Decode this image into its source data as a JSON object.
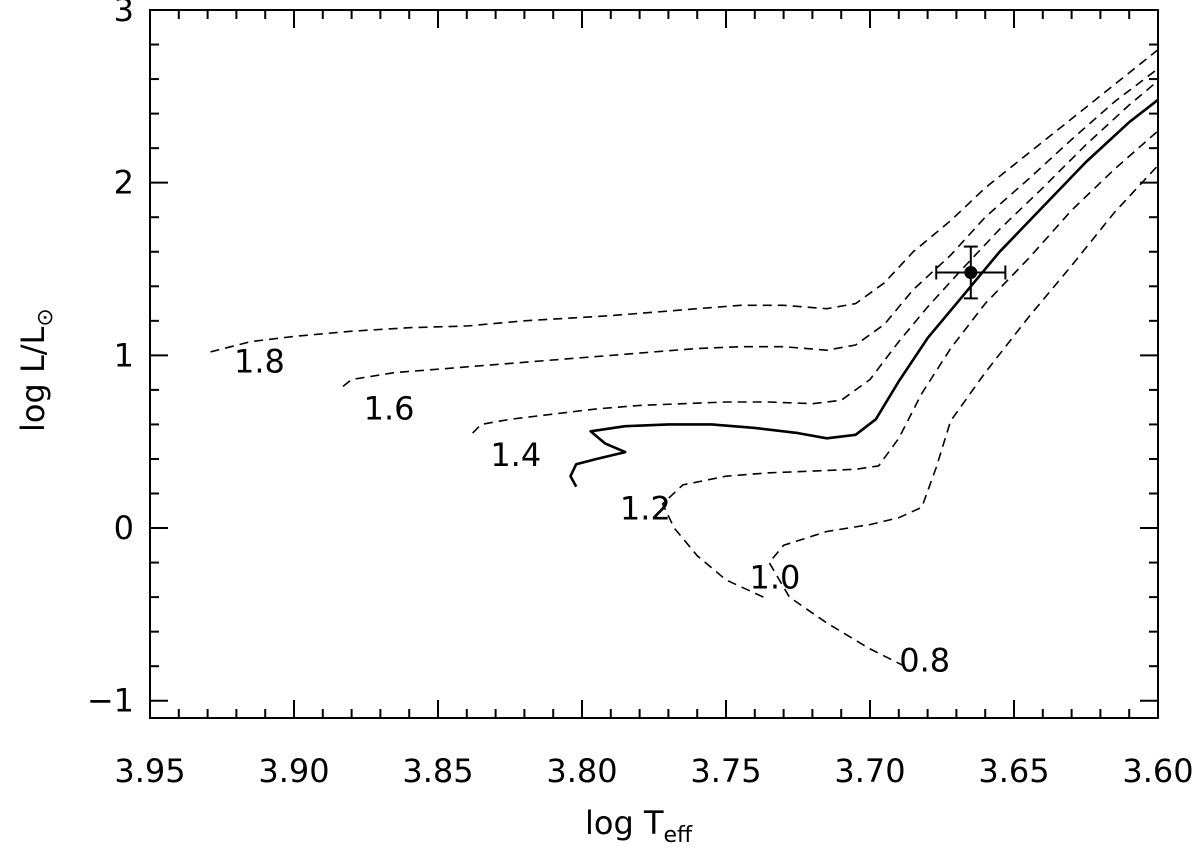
{
  "chart_data": {
    "type": "line",
    "title": "",
    "xlabel": {
      "main": "log T",
      "sub": "eff"
    },
    "ylabel": {
      "main": "log L/L",
      "sub": "⊙"
    },
    "xlim": [
      3.95,
      3.6
    ],
    "ylim": [
      -1.1,
      3.0
    ],
    "x_ticks": [
      "3.95",
      "3.90",
      "3.85",
      "3.80",
      "3.75",
      "3.70",
      "3.65",
      "3.60"
    ],
    "y_ticks": [
      "−1",
      "0",
      "1",
      "2",
      "3"
    ],
    "grid": false,
    "legend": "none",
    "series": [
      {
        "label": "1.8",
        "style": "dashed",
        "label_at": [
          3.912,
          0.9
        ],
        "points": [
          [
            3.929,
            1.02
          ],
          [
            3.915,
            1.08
          ],
          [
            3.9,
            1.11
          ],
          [
            3.88,
            1.14
          ],
          [
            3.86,
            1.16
          ],
          [
            3.84,
            1.17
          ],
          [
            3.82,
            1.2
          ],
          [
            3.81,
            1.21
          ],
          [
            3.8,
            1.22
          ],
          [
            3.79,
            1.23
          ],
          [
            3.775,
            1.25
          ],
          [
            3.76,
            1.27
          ],
          [
            3.745,
            1.29
          ],
          [
            3.73,
            1.29
          ],
          [
            3.715,
            1.27
          ],
          [
            3.705,
            1.3
          ],
          [
            3.695,
            1.42
          ],
          [
            3.685,
            1.6
          ],
          [
            3.672,
            1.78
          ],
          [
            3.66,
            1.97
          ],
          [
            3.645,
            2.17
          ],
          [
            3.63,
            2.37
          ],
          [
            3.615,
            2.57
          ],
          [
            3.6,
            2.77
          ]
        ]
      },
      {
        "label": "1.6",
        "style": "dashed",
        "label_at": [
          3.867,
          0.63
        ],
        "points": [
          [
            3.883,
            0.82
          ],
          [
            3.88,
            0.86
          ],
          [
            3.865,
            0.9
          ],
          [
            3.85,
            0.92
          ],
          [
            3.835,
            0.94
          ],
          [
            3.82,
            0.96
          ],
          [
            3.805,
            0.98
          ],
          [
            3.79,
            1.0
          ],
          [
            3.775,
            1.02
          ],
          [
            3.76,
            1.04
          ],
          [
            3.745,
            1.05
          ],
          [
            3.73,
            1.05
          ],
          [
            3.715,
            1.03
          ],
          [
            3.705,
            1.06
          ],
          [
            3.695,
            1.18
          ],
          [
            3.685,
            1.38
          ],
          [
            3.672,
            1.58
          ],
          [
            3.66,
            1.8
          ],
          [
            3.645,
            2.02
          ],
          [
            3.63,
            2.25
          ],
          [
            3.615,
            2.47
          ],
          [
            3.6,
            2.66
          ]
        ]
      },
      {
        "label": "1.4",
        "style": "dashed",
        "label_at": [
          3.823,
          0.36
        ],
        "points": [
          [
            3.838,
            0.55
          ],
          [
            3.835,
            0.6
          ],
          [
            3.825,
            0.63
          ],
          [
            3.81,
            0.66
          ],
          [
            3.795,
            0.69
          ],
          [
            3.78,
            0.71
          ],
          [
            3.765,
            0.72
          ],
          [
            3.75,
            0.73
          ],
          [
            3.735,
            0.73
          ],
          [
            3.72,
            0.72
          ],
          [
            3.71,
            0.74
          ],
          [
            3.7,
            0.86
          ],
          [
            3.69,
            1.08
          ],
          [
            3.68,
            1.28
          ],
          [
            3.668,
            1.5
          ],
          [
            3.655,
            1.73
          ],
          [
            3.64,
            1.97
          ],
          [
            3.625,
            2.22
          ],
          [
            3.61,
            2.45
          ],
          [
            3.6,
            2.59
          ]
        ]
      },
      {
        "label": "1.2",
        "style": "solid",
        "label_at": [
          3.778,
          0.05
        ],
        "points": [
          [
            3.802,
            0.24
          ],
          [
            3.804,
            0.3
          ],
          [
            3.802,
            0.37
          ],
          [
            3.795,
            0.4
          ],
          [
            3.785,
            0.44
          ],
          [
            3.792,
            0.49
          ],
          [
            3.797,
            0.56
          ],
          [
            3.785,
            0.59
          ],
          [
            3.77,
            0.6
          ],
          [
            3.755,
            0.6
          ],
          [
            3.74,
            0.58
          ],
          [
            3.725,
            0.55
          ],
          [
            3.715,
            0.52
          ],
          [
            3.705,
            0.54
          ],
          [
            3.698,
            0.63
          ],
          [
            3.69,
            0.85
          ],
          [
            3.68,
            1.1
          ],
          [
            3.668,
            1.34
          ],
          [
            3.655,
            1.6
          ],
          [
            3.64,
            1.86
          ],
          [
            3.625,
            2.12
          ],
          [
            3.61,
            2.35
          ],
          [
            3.6,
            2.48
          ]
        ]
      },
      {
        "label": "1.0",
        "style": "dashed",
        "label_at": [
          3.733,
          -0.35
        ],
        "points": [
          [
            3.737,
            -0.4
          ],
          [
            3.75,
            -0.3
          ],
          [
            3.76,
            -0.16
          ],
          [
            3.768,
            0.0
          ],
          [
            3.772,
            0.14
          ],
          [
            3.765,
            0.25
          ],
          [
            3.75,
            0.3
          ],
          [
            3.735,
            0.32
          ],
          [
            3.72,
            0.33
          ],
          [
            3.705,
            0.34
          ],
          [
            3.697,
            0.36
          ],
          [
            3.69,
            0.52
          ],
          [
            3.682,
            0.78
          ],
          [
            3.672,
            1.04
          ],
          [
            3.66,
            1.3
          ],
          [
            3.645,
            1.56
          ],
          [
            3.63,
            1.84
          ],
          [
            3.615,
            2.08
          ],
          [
            3.6,
            2.3
          ]
        ]
      },
      {
        "label": "0.8",
        "style": "dashed",
        "label_at": [
          3.681,
          -0.83
        ],
        "points": [
          [
            3.688,
            -0.8
          ],
          [
            3.7,
            -0.7
          ],
          [
            3.715,
            -0.55
          ],
          [
            3.728,
            -0.4
          ],
          [
            3.735,
            -0.2
          ],
          [
            3.73,
            -0.1
          ],
          [
            3.715,
            -0.02
          ],
          [
            3.7,
            0.02
          ],
          [
            3.69,
            0.06
          ],
          [
            3.682,
            0.12
          ],
          [
            3.677,
            0.35
          ],
          [
            3.672,
            0.62
          ],
          [
            3.66,
            0.9
          ],
          [
            3.645,
            1.22
          ],
          [
            3.63,
            1.52
          ],
          [
            3.615,
            1.83
          ],
          [
            3.6,
            2.1
          ]
        ]
      }
    ],
    "observed_star": {
      "x": 3.665,
      "y": 1.48,
      "x_err": 0.012,
      "y_err": 0.15
    }
  }
}
